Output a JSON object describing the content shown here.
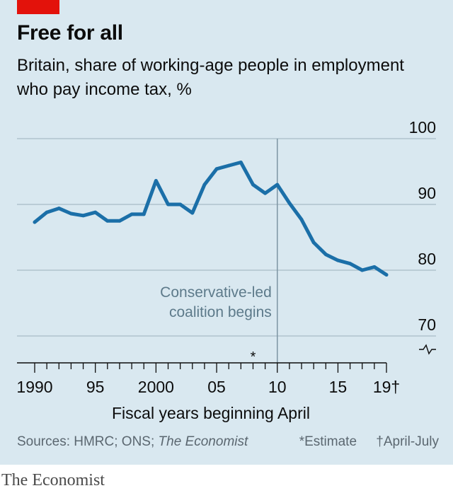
{
  "header": {
    "title": "Free for all",
    "subtitle": "Britain, share of working-age people in employment who pay income tax, %"
  },
  "chart_data": {
    "type": "line",
    "title": "Free for all",
    "subtitle": "Britain, share of working-age people in employment who pay income tax, %",
    "xlabel": "Fiscal years beginning April",
    "ylabel": "",
    "xlim": [
      1990,
      2019
    ],
    "ylim": [
      70,
      100
    ],
    "y_ticks": [
      70,
      80,
      90,
      100
    ],
    "y_tick_labels": [
      "70",
      "80",
      "90",
      "100"
    ],
    "x_ticks": [
      1990,
      1995,
      2000,
      2005,
      2010,
      2015,
      2019
    ],
    "x_tick_labels": [
      "1990",
      "95",
      "2000",
      "05",
      "10",
      "15",
      "19†"
    ],
    "axis_break_label": "",
    "grid": "horizontal",
    "series_color": "#1b6fa8",
    "x": [
      1990,
      1991,
      1992,
      1993,
      1994,
      1995,
      1996,
      1997,
      1998,
      1999,
      2000,
      2001,
      2002,
      2003,
      2004,
      2005,
      2006,
      2007,
      2008,
      2009,
      2010,
      2011,
      2012,
      2013,
      2014,
      2015,
      2016,
      2017,
      2018,
      2019
    ],
    "values": [
      87.3,
      88.8,
      89.4,
      88.6,
      88.3,
      88.8,
      87.5,
      87.5,
      88.5,
      88.5,
      93.6,
      90.0,
      90.0,
      88.7,
      93.0,
      95.4,
      95.9,
      96.4,
      93.0,
      91.7,
      93.0,
      90.2,
      87.7,
      84.2,
      82.4,
      81.5,
      81.0,
      80.0,
      80.5,
      79.3
    ],
    "estimate_year": 2008,
    "estimate_marker": "*",
    "annotation": {
      "x": 2010,
      "text_line1": "Conservative-led",
      "text_line2": "coalition begins"
    }
  },
  "footer": {
    "sources_prefix": "Sources: HMRC; ONS; ",
    "sources_italic": "The Economist",
    "note_estimate": "*Estimate",
    "note_dagger": "†April-July",
    "logo": "The Economist"
  },
  "colors": {
    "background": "#d9e8f0",
    "accent_red": "#e3120b",
    "line": "#1b6fa8",
    "annotation_text": "#5d7a8a",
    "annotation_line": "#7d95a3",
    "grid": "#a9bcc7"
  }
}
